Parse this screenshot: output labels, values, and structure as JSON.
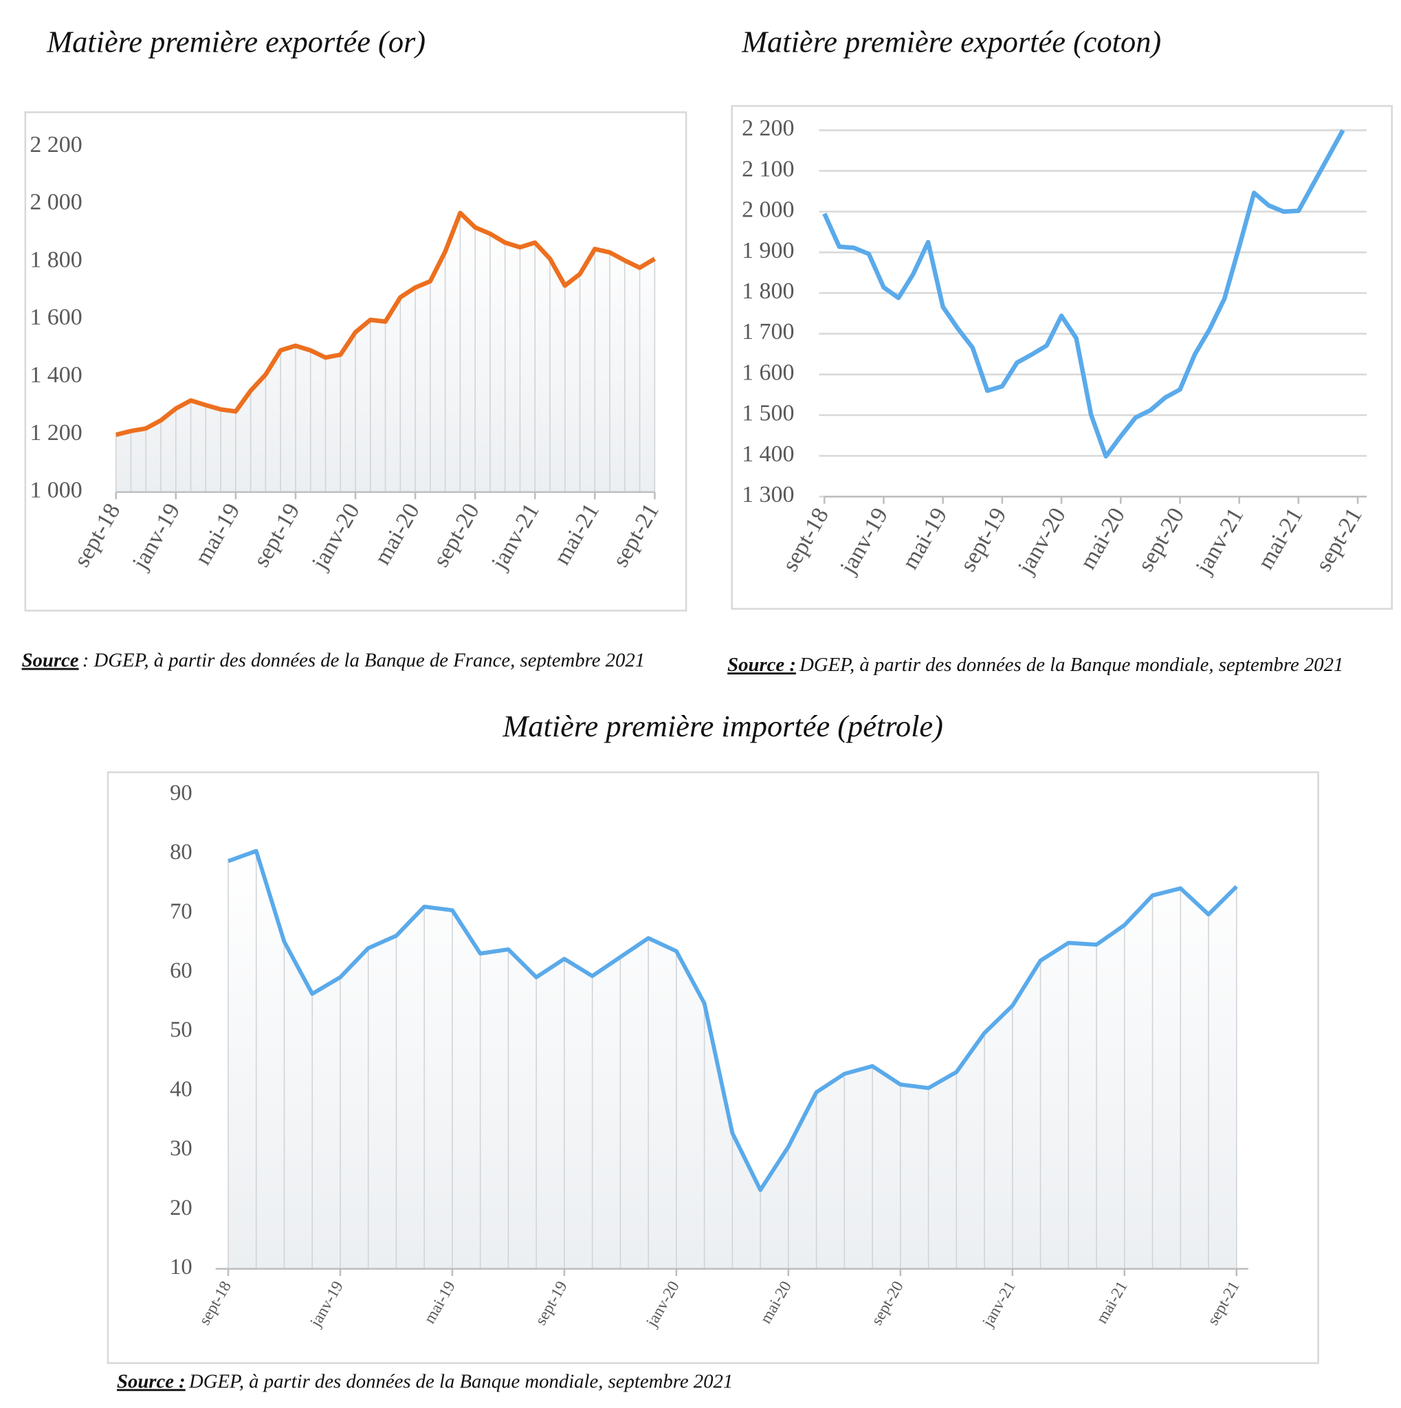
{
  "chart_data": [
    {
      "type": "line",
      "title": "Matière première exportée (or)",
      "source_label": "Source",
      "source_text": ": DGEP, à partir des données de la Banque de France, septembre 2021",
      "categories": [
        "sept-18",
        null,
        null,
        null,
        "janv-19",
        null,
        null,
        null,
        "mai-19",
        null,
        null,
        null,
        "sept-19",
        null,
        null,
        null,
        "janv-20",
        null,
        null,
        null,
        "mai-20",
        null,
        null,
        null,
        "sept-20",
        null,
        null,
        null,
        "janv-21",
        null,
        null,
        null,
        "mai-21",
        null,
        null,
        null,
        "sept-21"
      ],
      "values": [
        1199,
        1212,
        1221,
        1249,
        1290,
        1318,
        1302,
        1287,
        1280,
        1352,
        1408,
        1492,
        1508,
        1492,
        1467,
        1477,
        1555,
        1598,
        1592,
        1676,
        1710,
        1732,
        1835,
        1969,
        1919,
        1897,
        1866,
        1850,
        1866,
        1810,
        1717,
        1757,
        1844,
        1832,
        1804,
        1779,
        1810
      ],
      "color": "#ec6f1f",
      "ylim": [
        1000,
        2300
      ],
      "yticks": [
        {
          "value": 1000,
          "label": "1 000"
        },
        {
          "value": 1200,
          "label": "1 200"
        },
        {
          "value": 1400,
          "label": "1 400"
        },
        {
          "value": 1600,
          "label": "1 600"
        },
        {
          "value": 1800,
          "label": "1 800"
        },
        {
          "value": 2000,
          "label": "2 000"
        },
        {
          "value": 2200,
          "label": "2 200"
        }
      ],
      "grid": false,
      "drop_lines": true
    },
    {
      "type": "line",
      "title": "Matière première exportée (coton)",
      "source_label": "Source :",
      "source_text": "DGEP, à partir des données de la Banque mondiale, septembre 2021",
      "categories": [
        "sept-18",
        null,
        null,
        null,
        "janv-19",
        null,
        null,
        null,
        "mai-19",
        null,
        null,
        null,
        "sept-19",
        null,
        null,
        null,
        "janv-20",
        null,
        null,
        null,
        "mai-20",
        null,
        null,
        null,
        "sept-20",
        null,
        null,
        null,
        "janv-21",
        null,
        null,
        null,
        "mai-21",
        null,
        null,
        null,
        "sept-21"
      ],
      "values": [
        1995,
        1914,
        1911,
        1896,
        1814,
        1788,
        1847,
        1925,
        1766,
        1713,
        1666,
        1560,
        1571,
        1629,
        1649,
        1671,
        1744,
        1689,
        1501,
        1399,
        1448,
        1494,
        1512,
        1543,
        1563,
        1649,
        1711,
        1786,
        1914,
        2046,
        2015,
        2000,
        2002,
        2068,
        2134,
        2200,
        null
      ],
      "color": "#5aaaea",
      "ylim": [
        1300,
        2200
      ],
      "yticks": [
        {
          "value": 1300,
          "label": "1 300"
        },
        {
          "value": 1400,
          "label": "1 400"
        },
        {
          "value": 1500,
          "label": "1 500"
        },
        {
          "value": 1600,
          "label": "1 600"
        },
        {
          "value": 1700,
          "label": "1 700"
        },
        {
          "value": 1800,
          "label": "1 800"
        },
        {
          "value": 1900,
          "label": "1 900"
        },
        {
          "value": 2000,
          "label": "2 000"
        },
        {
          "value": 2100,
          "label": "2 100"
        },
        {
          "value": 2200,
          "label": "2 200"
        }
      ],
      "grid": true,
      "drop_lines": false
    },
    {
      "type": "line",
      "title": "Matière première importée (pétrole)",
      "source_label": "Source :",
      "source_text": "DGEP, à partir des données de la Banque mondiale, septembre 2021",
      "categories": [
        "sept-18",
        null,
        null,
        null,
        "janv-19",
        null,
        null,
        null,
        "mai-19",
        null,
        null,
        null,
        "sept-19",
        null,
        null,
        null,
        "janv-20",
        null,
        null,
        null,
        "mai-20",
        null,
        null,
        null,
        "sept-20",
        null,
        null,
        null,
        "janv-21",
        null,
        null,
        null,
        "mai-21",
        null,
        null,
        null,
        "sept-21"
      ],
      "values": [
        78.8,
        80.5,
        65.2,
        56.4,
        59.2,
        64.1,
        66.2,
        71.1,
        70.5,
        63.2,
        63.9,
        59.2,
        62.3,
        59.4,
        62.6,
        65.8,
        63.6,
        54.8,
        32.9,
        23.3,
        30.6,
        39.8,
        42.9,
        44.2,
        41.1,
        40.5,
        43.2,
        49.8,
        54.4,
        62.0,
        65.0,
        64.7,
        68.0,
        73.0,
        74.2,
        69.8,
        74.5
      ],
      "color": "#5aaaea",
      "ylim": [
        10,
        90
      ],
      "yticks": [
        10,
        20,
        30,
        40,
        50,
        60,
        70,
        80,
        90
      ],
      "grid": false,
      "drop_lines": true
    }
  ]
}
